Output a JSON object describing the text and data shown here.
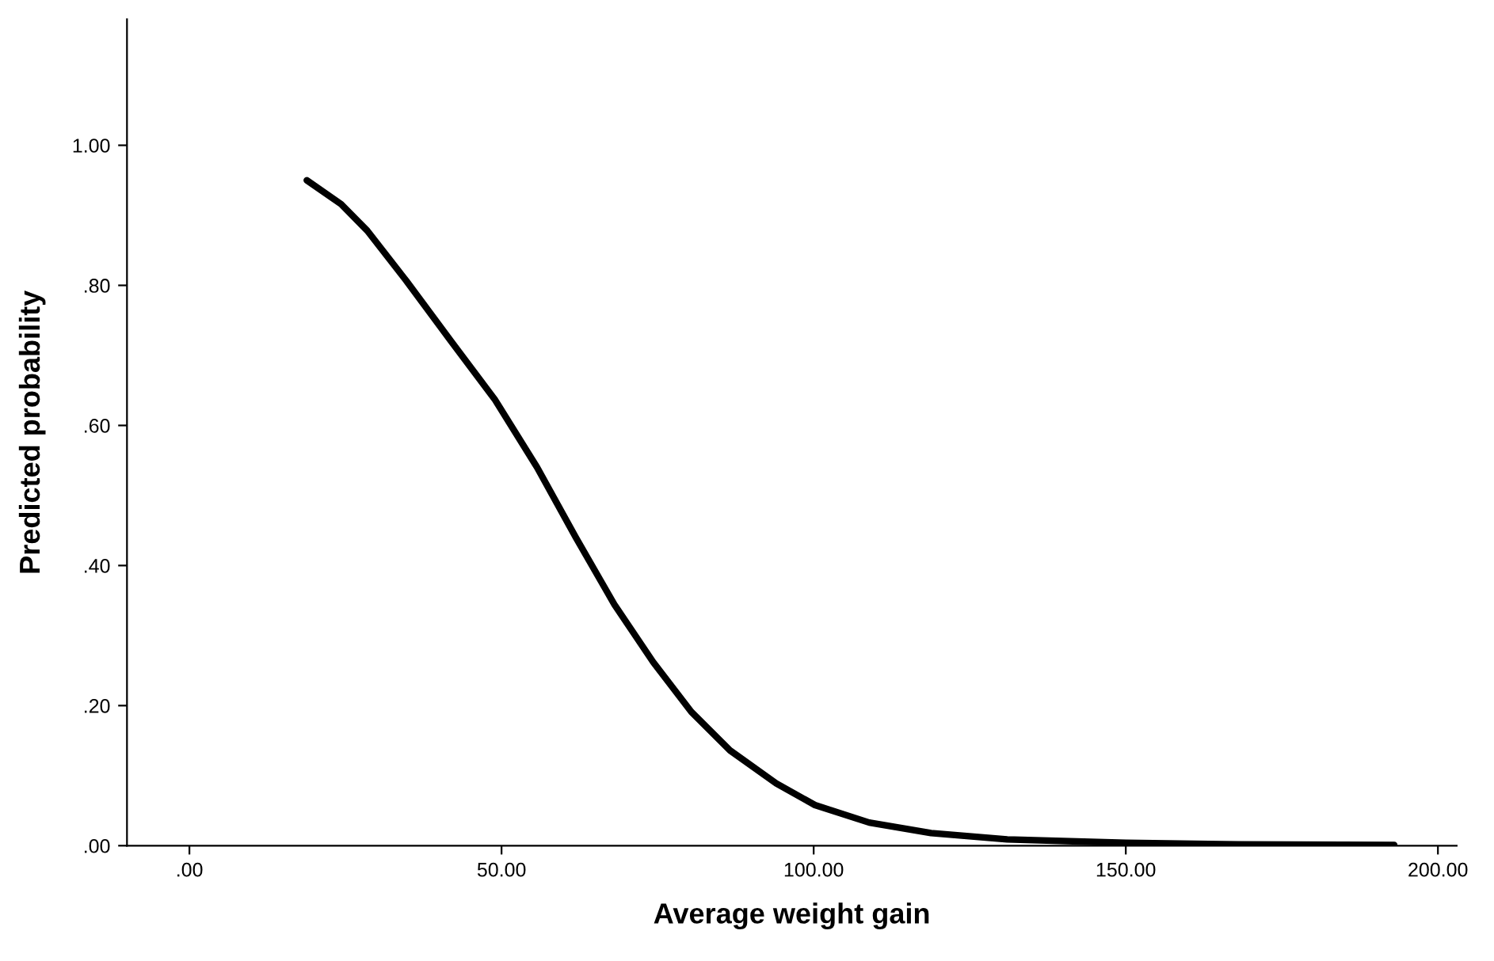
{
  "chart_data": {
    "type": "line",
    "xlabel": "Average weight gain",
    "ylabel": "Predicted probability",
    "x": [
      18.8,
      24.3,
      28.5,
      34.7,
      42.1,
      49,
      55.7,
      61.9,
      68.1,
      74.3,
      80.4,
      86.6,
      94,
      100.2,
      108.9,
      118.8,
      131,
      150,
      168,
      193
    ],
    "series": [
      {
        "color": "#000000",
        "values": [
          0.95,
          0.916,
          0.878,
          0.807,
          0.718,
          0.636,
          0.54,
          0.44,
          0.344,
          0.262,
          0.191,
          0.136,
          0.089,
          0.058,
          0.033,
          0.018,
          0.009,
          0.004,
          0.002,
          0.001
        ]
      }
    ],
    "xlim": [
      -10,
      203
    ],
    "ylim": [
      0,
      1.18
    ],
    "xticks": [
      {
        "value": 0,
        "label": ".00"
      },
      {
        "value": 50,
        "label": "50.00"
      },
      {
        "value": 100,
        "label": "100.00"
      },
      {
        "value": 150,
        "label": "150.00"
      },
      {
        "value": 200,
        "label": "200.00"
      }
    ],
    "yticks": [
      {
        "value": 0,
        "label": ".00"
      },
      {
        "value": 0.2,
        "label": ".20"
      },
      {
        "value": 0.4,
        "label": ".40"
      },
      {
        "value": 0.6,
        "label": ".60"
      },
      {
        "value": 0.8,
        "label": ".80"
      },
      {
        "value": 1,
        "label": "1.00"
      }
    ],
    "grid": false,
    "marker": "none",
    "line_style": "solid"
  }
}
